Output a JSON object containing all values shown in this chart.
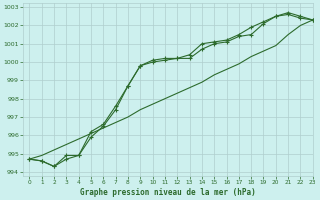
{
  "title": "Graphe pression niveau de la mer (hPa)",
  "background_color": "#cdf0ee",
  "grid_color": "#b0cece",
  "line_color": "#2d6b2d",
  "xlim": [
    -0.5,
    23
  ],
  "ylim": [
    993.8,
    1003.2
  ],
  "yticks": [
    994,
    995,
    996,
    997,
    998,
    999,
    1000,
    1001,
    1002,
    1003
  ],
  "xticks": [
    0,
    1,
    2,
    3,
    4,
    5,
    6,
    7,
    8,
    9,
    10,
    11,
    12,
    13,
    14,
    15,
    16,
    17,
    18,
    19,
    20,
    21,
    22,
    23
  ],
  "series_linear": [
    994.7,
    994.9,
    995.2,
    995.5,
    995.8,
    996.1,
    996.4,
    996.7,
    997.0,
    997.4,
    997.7,
    998.0,
    998.3,
    998.6,
    998.9,
    999.3,
    999.6,
    999.9,
    1000.3,
    1000.6,
    1000.9,
    1001.5,
    1002.0,
    1002.3
  ],
  "series_a": [
    994.7,
    994.6,
    994.3,
    994.7,
    994.9,
    995.9,
    996.5,
    997.4,
    998.7,
    999.8,
    1000.1,
    1000.2,
    1000.2,
    1000.2,
    1000.7,
    1001.0,
    1001.1,
    1001.4,
    1001.5,
    1002.1,
    1002.5,
    1002.6,
    1002.4,
    1002.3
  ],
  "series_b": [
    994.7,
    994.6,
    994.3,
    994.9,
    994.9,
    996.2,
    996.6,
    997.6,
    998.7,
    999.8,
    1000.0,
    1000.1,
    1000.2,
    1000.4,
    1001.0,
    1001.1,
    1001.2,
    1001.5,
    1001.9,
    1002.2,
    1002.5,
    1002.7,
    1002.5,
    1002.3
  ]
}
